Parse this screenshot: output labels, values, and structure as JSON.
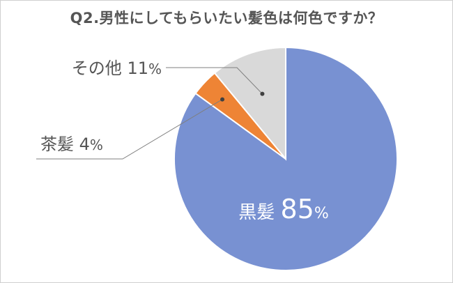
{
  "chart_data": {
    "type": "pie",
    "title": "Q2.男性にしてもらいたい髪色は何色ですか？",
    "categories": [
      "黒髪",
      "茶髪",
      "その他"
    ],
    "values": [
      85,
      4,
      11
    ],
    "unit": "%",
    "colors": [
      "#7891d2",
      "#ee8435",
      "#d9d9d9"
    ],
    "start_angle_deg": 0,
    "direction": "clockwise",
    "legend": "none"
  }
}
